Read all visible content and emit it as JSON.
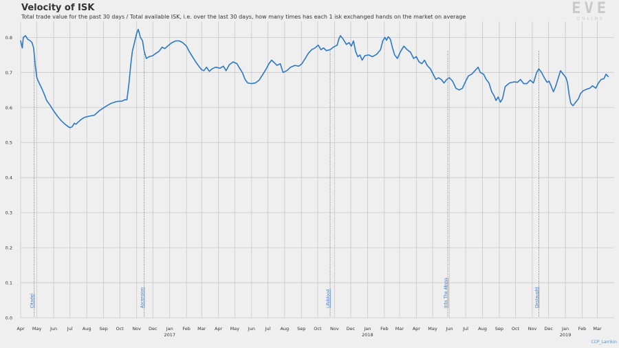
{
  "header": {
    "title": "Velocity of ISK",
    "subtitle": "Total trade value for the past 30 days / Total available ISK, i.e. over the last 30 days, how many times has each 1 isk exchanged hands on the market on average"
  },
  "logo": {
    "main": "EVE",
    "sub": "ONLINE"
  },
  "credit": "CCP_Larrikin",
  "colors": {
    "line": "#2a77c9",
    "grid": "#c8c8c8",
    "annotation": "#3a78c4",
    "background": "#efefef"
  },
  "chart_data": {
    "type": "line",
    "title": "Velocity of ISK",
    "xlabel": "",
    "ylabel": "",
    "ylim": [
      0.0,
      0.84
    ],
    "xlim": [
      "2016-04-01",
      "2019-04-01"
    ],
    "grid": true,
    "y_ticks": [
      "0.0",
      "0.1",
      "0.2",
      "0.3",
      "0.4",
      "0.5",
      "0.6",
      "0.7",
      "0.8"
    ],
    "x_ticks": [
      {
        "date": "2016-04-01",
        "label": "Apr",
        "year": ""
      },
      {
        "date": "2016-05-01",
        "label": "May",
        "year": ""
      },
      {
        "date": "2016-06-01",
        "label": "Jun",
        "year": ""
      },
      {
        "date": "2016-07-01",
        "label": "Jul",
        "year": ""
      },
      {
        "date": "2016-08-01",
        "label": "Aug",
        "year": ""
      },
      {
        "date": "2016-09-01",
        "label": "Sep",
        "year": ""
      },
      {
        "date": "2016-10-01",
        "label": "Oct",
        "year": ""
      },
      {
        "date": "2016-11-01",
        "label": "Nov",
        "year": ""
      },
      {
        "date": "2016-12-01",
        "label": "Dec",
        "year": ""
      },
      {
        "date": "2017-01-01",
        "label": "Jan",
        "year": "2017"
      },
      {
        "date": "2017-02-01",
        "label": "Feb",
        "year": ""
      },
      {
        "date": "2017-03-01",
        "label": "Mar",
        "year": ""
      },
      {
        "date": "2017-04-01",
        "label": "Apr",
        "year": ""
      },
      {
        "date": "2017-05-01",
        "label": "May",
        "year": ""
      },
      {
        "date": "2017-06-01",
        "label": "Jun",
        "year": ""
      },
      {
        "date": "2017-07-01",
        "label": "Jul",
        "year": ""
      },
      {
        "date": "2017-08-01",
        "label": "Aug",
        "year": ""
      },
      {
        "date": "2017-09-01",
        "label": "Sep",
        "year": ""
      },
      {
        "date": "2017-10-01",
        "label": "Oct",
        "year": ""
      },
      {
        "date": "2017-11-01",
        "label": "Nov",
        "year": ""
      },
      {
        "date": "2017-12-01",
        "label": "Dec",
        "year": ""
      },
      {
        "date": "2018-01-01",
        "label": "Jan",
        "year": "2018"
      },
      {
        "date": "2018-02-01",
        "label": "Feb",
        "year": ""
      },
      {
        "date": "2018-03-01",
        "label": "Mar",
        "year": ""
      },
      {
        "date": "2018-04-01",
        "label": "Apr",
        "year": ""
      },
      {
        "date": "2018-05-01",
        "label": "May",
        "year": ""
      },
      {
        "date": "2018-06-01",
        "label": "Jun",
        "year": ""
      },
      {
        "date": "2018-07-01",
        "label": "Jul",
        "year": ""
      },
      {
        "date": "2018-08-01",
        "label": "Aug",
        "year": ""
      },
      {
        "date": "2018-09-01",
        "label": "Sep",
        "year": ""
      },
      {
        "date": "2018-10-01",
        "label": "Oct",
        "year": ""
      },
      {
        "date": "2018-11-01",
        "label": "Nov",
        "year": ""
      },
      {
        "date": "2018-12-01",
        "label": "Dec",
        "year": ""
      },
      {
        "date": "2019-01-01",
        "label": "Jan",
        "year": "2019"
      },
      {
        "date": "2019-02-01",
        "label": "Feb",
        "year": ""
      },
      {
        "date": "2019-03-01",
        "label": "Mar",
        "year": ""
      }
    ],
    "annotations": [
      {
        "date": "2016-04-26",
        "label": "Citadel"
      },
      {
        "date": "2016-11-15",
        "label": "Ascension"
      },
      {
        "date": "2017-10-24",
        "label": "Lifeblood"
      },
      {
        "date": "2018-05-29",
        "label": "Into The Abyss"
      },
      {
        "date": "2018-11-13",
        "label": "Onslaught"
      }
    ],
    "series": [
      {
        "name": "",
        "points": [
          [
            "2016-04-01",
            0.79
          ],
          [
            "2016-04-04",
            0.77
          ],
          [
            "2016-04-06",
            0.8
          ],
          [
            "2016-04-10",
            0.805
          ],
          [
            "2016-04-14",
            0.795
          ],
          [
            "2016-04-19",
            0.79
          ],
          [
            "2016-04-22",
            0.785
          ],
          [
            "2016-04-25",
            0.77
          ],
          [
            "2016-04-28",
            0.72
          ],
          [
            "2016-05-01",
            0.685
          ],
          [
            "2016-05-05",
            0.67
          ],
          [
            "2016-05-09",
            0.658
          ],
          [
            "2016-05-14",
            0.64
          ],
          [
            "2016-05-19",
            0.62
          ],
          [
            "2016-05-25",
            0.607
          ],
          [
            "2016-06-01",
            0.59
          ],
          [
            "2016-06-08",
            0.575
          ],
          [
            "2016-06-15",
            0.562
          ],
          [
            "2016-06-22",
            0.552
          ],
          [
            "2016-06-28",
            0.545
          ],
          [
            "2016-07-01",
            0.542
          ],
          [
            "2016-07-05",
            0.545
          ],
          [
            "2016-07-09",
            0.555
          ],
          [
            "2016-07-12",
            0.552
          ],
          [
            "2016-07-16",
            0.558
          ],
          [
            "2016-07-21",
            0.565
          ],
          [
            "2016-07-28",
            0.572
          ],
          [
            "2016-08-05",
            0.575
          ],
          [
            "2016-08-15",
            0.578
          ],
          [
            "2016-08-25",
            0.592
          ],
          [
            "2016-09-05",
            0.603
          ],
          [
            "2016-09-15",
            0.612
          ],
          [
            "2016-09-25",
            0.617
          ],
          [
            "2016-10-05",
            0.618
          ],
          [
            "2016-10-10",
            0.622
          ],
          [
            "2016-10-14",
            0.622
          ],
          [
            "2016-10-18",
            0.67
          ],
          [
            "2016-10-21",
            0.72
          ],
          [
            "2016-10-24",
            0.76
          ],
          [
            "2016-10-28",
            0.785
          ],
          [
            "2016-11-01",
            0.812
          ],
          [
            "2016-11-04",
            0.823
          ],
          [
            "2016-11-08",
            0.8
          ],
          [
            "2016-11-12",
            0.79
          ],
          [
            "2016-11-15",
            0.76
          ],
          [
            "2016-11-19",
            0.74
          ],
          [
            "2016-11-24",
            0.745
          ],
          [
            "2016-12-01",
            0.748
          ],
          [
            "2016-12-07",
            0.755
          ],
          [
            "2016-12-12",
            0.76
          ],
          [
            "2016-12-18",
            0.772
          ],
          [
            "2016-12-23",
            0.768
          ],
          [
            "2016-12-28",
            0.775
          ],
          [
            "2017-01-05",
            0.785
          ],
          [
            "2017-01-12",
            0.79
          ],
          [
            "2017-01-19",
            0.79
          ],
          [
            "2017-01-25",
            0.785
          ],
          [
            "2017-02-01",
            0.775
          ],
          [
            "2017-02-06",
            0.76
          ],
          [
            "2017-02-12",
            0.745
          ],
          [
            "2017-02-18",
            0.73
          ],
          [
            "2017-02-25",
            0.715
          ],
          [
            "2017-03-01",
            0.708
          ],
          [
            "2017-03-05",
            0.705
          ],
          [
            "2017-03-10",
            0.715
          ],
          [
            "2017-03-15",
            0.703
          ],
          [
            "2017-03-20",
            0.71
          ],
          [
            "2017-03-27",
            0.715
          ],
          [
            "2017-04-04",
            0.712
          ],
          [
            "2017-04-10",
            0.718
          ],
          [
            "2017-04-15",
            0.705
          ],
          [
            "2017-04-21",
            0.722
          ],
          [
            "2017-04-28",
            0.73
          ],
          [
            "2017-05-05",
            0.725
          ],
          [
            "2017-05-10",
            0.712
          ],
          [
            "2017-05-15",
            0.7
          ],
          [
            "2017-05-20",
            0.68
          ],
          [
            "2017-05-25",
            0.67
          ],
          [
            "2017-06-01",
            0.668
          ],
          [
            "2017-06-08",
            0.67
          ],
          [
            "2017-06-15",
            0.678
          ],
          [
            "2017-06-22",
            0.695
          ],
          [
            "2017-06-28",
            0.71
          ],
          [
            "2017-07-03",
            0.725
          ],
          [
            "2017-07-08",
            0.735
          ],
          [
            "2017-07-13",
            0.728
          ],
          [
            "2017-07-18",
            0.72
          ],
          [
            "2017-07-24",
            0.725
          ],
          [
            "2017-07-29",
            0.7
          ],
          [
            "2017-08-05",
            0.705
          ],
          [
            "2017-08-12",
            0.715
          ],
          [
            "2017-08-20",
            0.72
          ],
          [
            "2017-08-27",
            0.718
          ],
          [
            "2017-09-02",
            0.725
          ],
          [
            "2017-09-08",
            0.74
          ],
          [
            "2017-09-14",
            0.755
          ],
          [
            "2017-09-20",
            0.765
          ],
          [
            "2017-09-26",
            0.77
          ],
          [
            "2017-10-02",
            0.778
          ],
          [
            "2017-10-07",
            0.765
          ],
          [
            "2017-10-12",
            0.77
          ],
          [
            "2017-10-17",
            0.762
          ],
          [
            "2017-10-24",
            0.765
          ],
          [
            "2017-10-30",
            0.772
          ],
          [
            "2017-11-06",
            0.778
          ],
          [
            "2017-11-09",
            0.795
          ],
          [
            "2017-11-12",
            0.805
          ],
          [
            "2017-11-17",
            0.795
          ],
          [
            "2017-11-23",
            0.78
          ],
          [
            "2017-11-28",
            0.785
          ],
          [
            "2017-12-02",
            0.775
          ],
          [
            "2017-12-06",
            0.79
          ],
          [
            "2017-12-10",
            0.76
          ],
          [
            "2017-12-14",
            0.745
          ],
          [
            "2017-12-18",
            0.75
          ],
          [
            "2017-12-22",
            0.735
          ],
          [
            "2017-12-27",
            0.748
          ],
          [
            "2018-01-03",
            0.75
          ],
          [
            "2018-01-10",
            0.745
          ],
          [
            "2018-01-18",
            0.752
          ],
          [
            "2018-01-25",
            0.765
          ],
          [
            "2018-01-29",
            0.79
          ],
          [
            "2018-02-02",
            0.8
          ],
          [
            "2018-02-05",
            0.792
          ],
          [
            "2018-02-08",
            0.802
          ],
          [
            "2018-02-12",
            0.795
          ],
          [
            "2018-02-16",
            0.77
          ],
          [
            "2018-02-20",
            0.75
          ],
          [
            "2018-02-25",
            0.74
          ],
          [
            "2018-03-03",
            0.76
          ],
          [
            "2018-03-09",
            0.775
          ],
          [
            "2018-03-15",
            0.765
          ],
          [
            "2018-03-21",
            0.758
          ],
          [
            "2018-03-27",
            0.74
          ],
          [
            "2018-04-01",
            0.745
          ],
          [
            "2018-04-06",
            0.73
          ],
          [
            "2018-04-11",
            0.725
          ],
          [
            "2018-04-16",
            0.735
          ],
          [
            "2018-04-21",
            0.72
          ],
          [
            "2018-04-27",
            0.71
          ],
          [
            "2018-05-02",
            0.695
          ],
          [
            "2018-05-07",
            0.68
          ],
          [
            "2018-05-12",
            0.685
          ],
          [
            "2018-05-17",
            0.68
          ],
          [
            "2018-05-22",
            0.67
          ],
          [
            "2018-05-27",
            0.68
          ],
          [
            "2018-06-01",
            0.685
          ],
          [
            "2018-06-07",
            0.675
          ],
          [
            "2018-06-13",
            0.655
          ],
          [
            "2018-06-19",
            0.65
          ],
          [
            "2018-06-25",
            0.655
          ],
          [
            "2018-07-01",
            0.675
          ],
          [
            "2018-07-06",
            0.69
          ],
          [
            "2018-07-12",
            0.695
          ],
          [
            "2018-07-18",
            0.705
          ],
          [
            "2018-07-24",
            0.715
          ],
          [
            "2018-07-28",
            0.7
          ],
          [
            "2018-08-03",
            0.695
          ],
          [
            "2018-08-08",
            0.68
          ],
          [
            "2018-08-13",
            0.67
          ],
          [
            "2018-08-18",
            0.645
          ],
          [
            "2018-08-22",
            0.635
          ],
          [
            "2018-08-26",
            0.62
          ],
          [
            "2018-08-30",
            0.63
          ],
          [
            "2018-09-03",
            0.615
          ],
          [
            "2018-09-07",
            0.625
          ],
          [
            "2018-09-12",
            0.66
          ],
          [
            "2018-09-20",
            0.67
          ],
          [
            "2018-09-28",
            0.673
          ],
          [
            "2018-10-05",
            0.672
          ],
          [
            "2018-10-10",
            0.68
          ],
          [
            "2018-10-16",
            0.668
          ],
          [
            "2018-10-22",
            0.668
          ],
          [
            "2018-10-28",
            0.678
          ],
          [
            "2018-11-03",
            0.67
          ],
          [
            "2018-11-09",
            0.7
          ],
          [
            "2018-11-13",
            0.71
          ],
          [
            "2018-11-18",
            0.7
          ],
          [
            "2018-11-23",
            0.685
          ],
          [
            "2018-11-28",
            0.672
          ],
          [
            "2018-12-02",
            0.675
          ],
          [
            "2018-12-06",
            0.66
          ],
          [
            "2018-12-10",
            0.645
          ],
          [
            "2018-12-14",
            0.66
          ],
          [
            "2018-12-18",
            0.68
          ],
          [
            "2018-12-23",
            0.705
          ],
          [
            "2018-12-28",
            0.695
          ],
          [
            "2019-01-02",
            0.685
          ],
          [
            "2019-01-05",
            0.67
          ],
          [
            "2019-01-08",
            0.635
          ],
          [
            "2019-01-11",
            0.612
          ],
          [
            "2019-01-15",
            0.605
          ],
          [
            "2019-01-20",
            0.615
          ],
          [
            "2019-01-25",
            0.625
          ],
          [
            "2019-01-29",
            0.64
          ],
          [
            "2019-02-03",
            0.648
          ],
          [
            "2019-02-09",
            0.652
          ],
          [
            "2019-02-15",
            0.655
          ],
          [
            "2019-02-20",
            0.662
          ],
          [
            "2019-02-26",
            0.655
          ],
          [
            "2019-03-03",
            0.67
          ],
          [
            "2019-03-08",
            0.68
          ],
          [
            "2019-03-13",
            0.682
          ],
          [
            "2019-03-17",
            0.695
          ],
          [
            "2019-03-21",
            0.688
          ]
        ]
      }
    ]
  }
}
